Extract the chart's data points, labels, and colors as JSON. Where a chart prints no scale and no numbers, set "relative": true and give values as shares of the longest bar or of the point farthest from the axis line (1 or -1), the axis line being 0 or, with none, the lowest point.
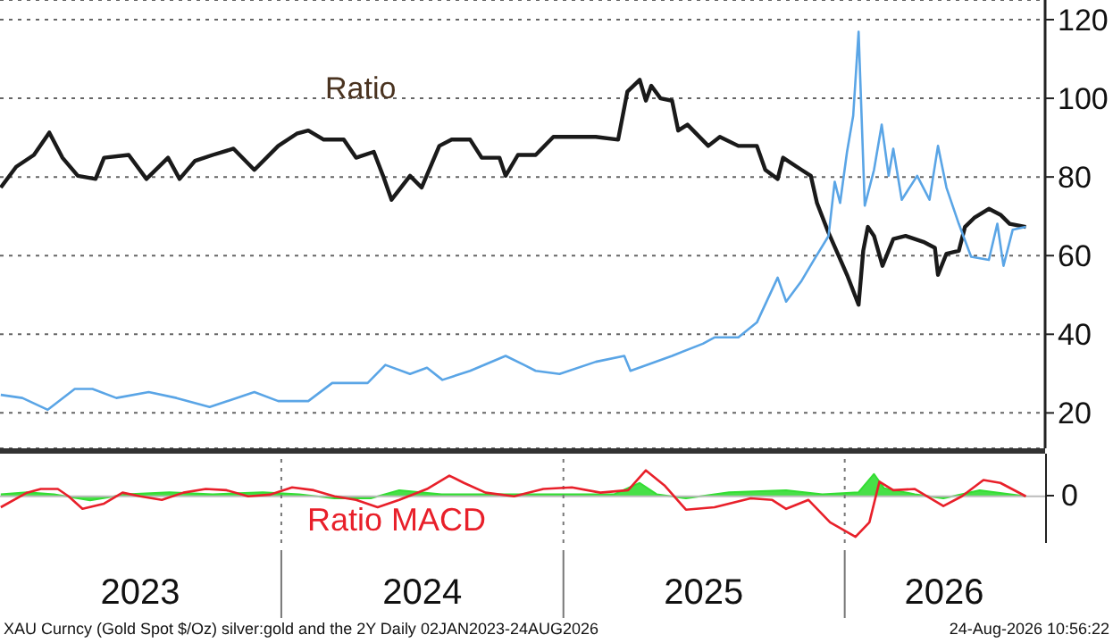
{
  "chart_data": [
    {
      "type": "line",
      "xlim": [
        "2023-01-01",
        "2026-09-18"
      ],
      "ylim": [
        11,
        125
      ],
      "yticks": [
        20,
        40,
        60,
        80,
        100,
        120
      ],
      "grid": "y",
      "tick_labels": "y",
      "series": [
        {
          "name": "Ratio",
          "color": "#1a1a1a",
          "x": [
            "2023-01-02",
            "2023-01-22",
            "2023-02-14",
            "2023-03-06",
            "2023-03-23",
            "2023-04-12",
            "2023-05-05",
            "2023-05-16",
            "2023-06-17",
            "2023-07-10",
            "2023-08-07",
            "2023-08-22",
            "2023-09-11",
            "2023-10-04",
            "2023-10-31",
            "2023-11-27",
            "2023-12-28",
            "2024-01-21",
            "2024-02-05",
            "2024-02-25",
            "2024-03-22",
            "2024-04-07",
            "2024-04-30",
            "2024-05-12",
            "2024-05-23",
            "2024-06-16",
            "2024-07-01",
            "2024-07-24",
            "2024-08-09",
            "2024-09-02",
            "2024-09-17",
            "2024-10-10",
            "2024-10-18",
            "2024-11-03",
            "2024-11-26",
            "2024-12-19",
            "2025-02-12",
            "2025-03-13",
            "2025-03-25",
            "2025-04-10",
            "2025-04-18",
            "2025-04-25",
            "2025-05-07",
            "2025-05-22",
            "2025-05-30",
            "2025-06-11",
            "2025-07-08",
            "2025-07-23",
            "2025-08-16",
            "2025-09-09",
            "2025-09-20",
            "2025-10-06",
            "2025-10-13",
            "2025-11-06",
            "2025-11-18",
            "2025-11-26",
            "2025-12-11",
            "2025-12-23",
            "2026-01-04",
            "2026-01-19",
            "2026-01-25",
            "2026-01-31",
            "2026-02-08",
            "2026-02-19",
            "2026-03-05",
            "2026-03-21",
            "2026-04-13",
            "2026-04-28",
            "2026-05-02",
            "2026-05-13",
            "2026-05-29",
            "2026-06-06",
            "2026-06-18",
            "2026-07-07",
            "2026-07-22",
            "2026-08-03",
            "2026-08-24"
          ],
          "values": [
            77.3,
            82.6,
            85.6,
            91.3,
            84.9,
            80.3,
            79.5,
            84.9,
            85.6,
            79.5,
            84.9,
            79.5,
            84.1,
            85.6,
            87.2,
            81.8,
            87.9,
            91,
            91.8,
            89.5,
            89.5,
            84.9,
            86.4,
            80.3,
            74.2,
            80.3,
            77.3,
            87.9,
            89.5,
            89.5,
            84.9,
            84.9,
            80.3,
            85.6,
            85.6,
            90.2,
            90.2,
            89.5,
            101.7,
            104.7,
            99.4,
            103.2,
            100,
            99.4,
            91.8,
            93.3,
            87.9,
            90.2,
            87.9,
            87.9,
            81.8,
            79.5,
            84.9,
            81.8,
            80.3,
            73.4,
            65.8,
            60.5,
            55.1,
            47.5,
            61.2,
            67.3,
            65,
            57.4,
            64.2,
            65,
            63.5,
            62,
            55.1,
            60.5,
            61.2,
            67.3,
            69.6,
            71.9,
            70.4,
            68.1,
            67.3
          ]
        },
        {
          "color": "#5aa5e6",
          "x": [
            "2023-01-02",
            "2023-01-30",
            "2023-03-04",
            "2023-04-08",
            "2023-05-01",
            "2023-06-01",
            "2023-07-13",
            "2023-08-18",
            "2023-09-30",
            "2023-11-27",
            "2023-12-28",
            "2024-02-05",
            "2024-03-07",
            "2024-04-22",
            "2024-05-15",
            "2024-06-16",
            "2024-07-08",
            "2024-07-28",
            "2024-09-02",
            "2024-10-18",
            "2024-11-11",
            "2024-11-26",
            "2024-12-27",
            "2025-02-12",
            "2025-03-21",
            "2025-03-29",
            "2025-05-22",
            "2025-07-01",
            "2025-07-16",
            "2025-08-16",
            "2025-09-09",
            "2025-10-06",
            "2025-10-17",
            "2025-11-06",
            "2025-11-22",
            "2025-12-11",
            "2025-12-19",
            "2025-12-26",
            "2026-01-04",
            "2026-01-12",
            "2026-01-19",
            "2026-01-27",
            "2026-02-08",
            "2026-02-18",
            "2026-02-27",
            "2026-03-05",
            "2026-03-16",
            "2026-04-05",
            "2026-04-21",
            "2026-05-02",
            "2026-05-13",
            "2026-05-29",
            "2026-06-14",
            "2026-07-07",
            "2026-07-18",
            "2026-07-26",
            "2026-08-07",
            "2026-08-24"
          ],
          "values": [
            24.6,
            23.8,
            20.8,
            26.1,
            26.1,
            23.8,
            25.3,
            23.8,
            21.5,
            25.3,
            23,
            23,
            27.6,
            27.6,
            32.2,
            29.9,
            31.5,
            28.4,
            30.7,
            34.5,
            32.2,
            30.7,
            29.9,
            33,
            34.5,
            30.7,
            34.5,
            37.6,
            39.2,
            39.2,
            43,
            54.4,
            48.3,
            53.6,
            58.9,
            65,
            78.8,
            73.4,
            86.4,
            95.6,
            116.9,
            72.7,
            81.8,
            93.3,
            80.3,
            87.2,
            74.2,
            80.3,
            74.2,
            87.9,
            77.3,
            68.1,
            59.7,
            58.9,
            68.1,
            57.4,
            66.6,
            67.3
          ]
        }
      ]
    },
    {
      "type": "line",
      "relative": true,
      "xlim": [
        "2023-01-01",
        "2026-09-18"
      ],
      "xticks": [
        {
          "value": "2023-07-02",
          "label": "2023"
        },
        {
          "value": "2024-01-01",
          "label": null
        },
        {
          "value": "2024-07-02",
          "label": "2024"
        },
        {
          "value": "2025-01-01",
          "label": null
        },
        {
          "value": "2025-07-02",
          "label": "2025"
        },
        {
          "value": "2026-01-01",
          "label": null
        },
        {
          "value": "2026-05-10",
          "label": "2026"
        }
      ],
      "grid": "x",
      "annotations": [
        "0",
        "XAU Curncy (Gold Spot  $/Oz) silver:gold and the 2Y Daily 02JAN2023-24AUG2026",
        "24-Aug-2026 10:56:22"
      ],
      "series": [
        {
          "type": "area",
          "color": "#33dd33",
          "x": [
            "2023-01-02",
            "2023-02-05",
            "2023-03-12",
            "2023-04-28",
            "2023-06-14",
            "2023-08-09",
            "2023-10-04",
            "2023-12-08",
            "2024-01-24",
            "2024-03-10",
            "2024-04-26",
            "2024-06-02",
            "2024-07-27",
            "2024-09-22",
            "2024-11-17",
            "2025-01-12",
            "2025-03-08",
            "2025-04-10",
            "2025-05-02",
            "2025-06-09",
            "2025-08-04",
            "2025-10-17",
            "2025-12-03",
            "2026-01-19",
            "2026-02-08",
            "2026-02-21",
            "2026-04-02",
            "2026-05-09",
            "2026-06-25",
            "2026-08-24"
          ],
          "values": [
            0.05,
            0.1,
            0.05,
            -0.1,
            0.05,
            0.1,
            0.05,
            0.1,
            0.05,
            -0.05,
            -0.05,
            0.15,
            0.05,
            0.05,
            0.05,
            0.05,
            0.05,
            0.33,
            0.05,
            -0.05,
            0.1,
            0.15,
            0.05,
            0.1,
            0.55,
            0.2,
            0.05,
            -0.05,
            0.15,
            0
          ]
        },
        {
          "name": "Ratio MACD",
          "color": "#e8202a",
          "x": [
            "2023-01-02",
            "2023-02-05",
            "2023-02-23",
            "2023-03-17",
            "2023-03-31",
            "2023-04-18",
            "2023-05-16",
            "2023-06-09",
            "2023-07-02",
            "2023-07-30",
            "2023-08-27",
            "2023-09-25",
            "2023-10-22",
            "2023-11-19",
            "2023-12-17",
            "2024-01-15",
            "2024-02-12",
            "2024-03-10",
            "2024-04-07",
            "2024-05-05",
            "2024-06-02",
            "2024-07-08",
            "2024-08-06",
            "2024-08-25",
            "2024-09-22",
            "2024-10-29",
            "2024-12-06",
            "2025-01-12",
            "2025-02-18",
            "2025-03-26",
            "2025-04-18",
            "2025-05-12",
            "2025-06-09",
            "2025-07-16",
            "2025-09-01",
            "2025-09-29",
            "2025-10-17",
            "2025-11-15",
            "2025-12-13",
            "2026-01-15",
            "2026-02-02",
            "2026-02-15",
            "2026-03-05",
            "2026-04-02",
            "2026-05-09",
            "2026-06-02",
            "2026-06-30",
            "2026-07-22",
            "2026-08-24"
          ],
          "values": [
            -0.27,
            0.09,
            0.18,
            0.18,
            0,
            -0.31,
            -0.18,
            0.09,
            0,
            -0.09,
            0.09,
            0.18,
            0.15,
            0,
            0.04,
            0.22,
            0.15,
            0,
            -0.09,
            -0.27,
            -0.09,
            0.18,
            0.51,
            0.33,
            0.09,
            0,
            0.18,
            0.22,
            0.09,
            0.15,
            0.64,
            0.27,
            -0.33,
            -0.27,
            -0.05,
            -0.09,
            -0.31,
            -0.09,
            -0.64,
            -1,
            -0.64,
            0.36,
            0.15,
            0.18,
            -0.24,
            0,
            0.4,
            0.33,
            0
          ]
        }
      ]
    }
  ]
}
